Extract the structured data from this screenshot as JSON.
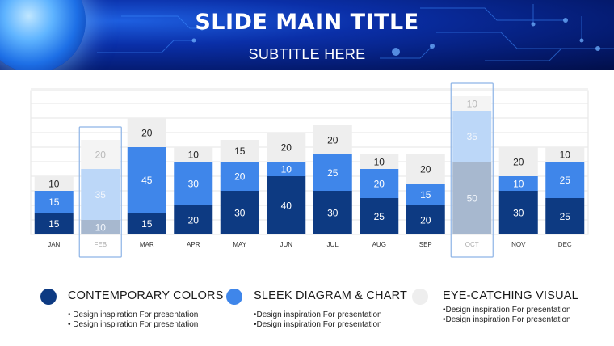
{
  "slide": {
    "title": "SLIDE MAIN TITLE",
    "subtitle": "SUBTITLE HERE"
  },
  "colors": {
    "dark": "#0d3a82",
    "mid": "#3f86ea",
    "light": "#eeeeee",
    "highlight_dark": "#a7b8cf",
    "highlight_mid": "#bcd7f8",
    "highlight_light": "#f4f4f4",
    "highlight_border": "#8eb4e6",
    "axis_label": "#333333"
  },
  "chart_data": {
    "type": "bar",
    "stacked": true,
    "categories": [
      "JAN",
      "FEB",
      "MAR",
      "APR",
      "MAY",
      "JUN",
      "JUL",
      "AUG",
      "SEP",
      "OCT",
      "NOV",
      "DEC"
    ],
    "series": [
      {
        "values": [
          15,
          10,
          15,
          20,
          30,
          40,
          30,
          25,
          20,
          50,
          30,
          25
        ]
      },
      {
        "values": [
          15,
          35,
          45,
          30,
          20,
          10,
          25,
          20,
          15,
          35,
          10,
          25
        ]
      },
      {
        "values": [
          10,
          20,
          20,
          10,
          15,
          20,
          20,
          10,
          20,
          10,
          20,
          10
        ]
      }
    ],
    "highlighted": [
      "FEB",
      "OCT"
    ],
    "ylim": [
      0,
      100
    ],
    "grid": true,
    "title": "",
    "xlabel": "",
    "ylabel": ""
  },
  "legend": [
    {
      "title": "CONTEMPORARY COLORS",
      "lines": [
        "• Design inspiration For presentation",
        "• Design inspiration For presentation"
      ]
    },
    {
      "title": "SLEEK DIAGRAM & CHART",
      "lines": [
        "•Design inspiration For presentation",
        "•Design inspiration For presentation"
      ]
    },
    {
      "title": "EYE-CATCHING VISUAL",
      "lines": [
        "•Design inspiration For presentation",
        "•Design inspiration For presentation"
      ]
    }
  ]
}
